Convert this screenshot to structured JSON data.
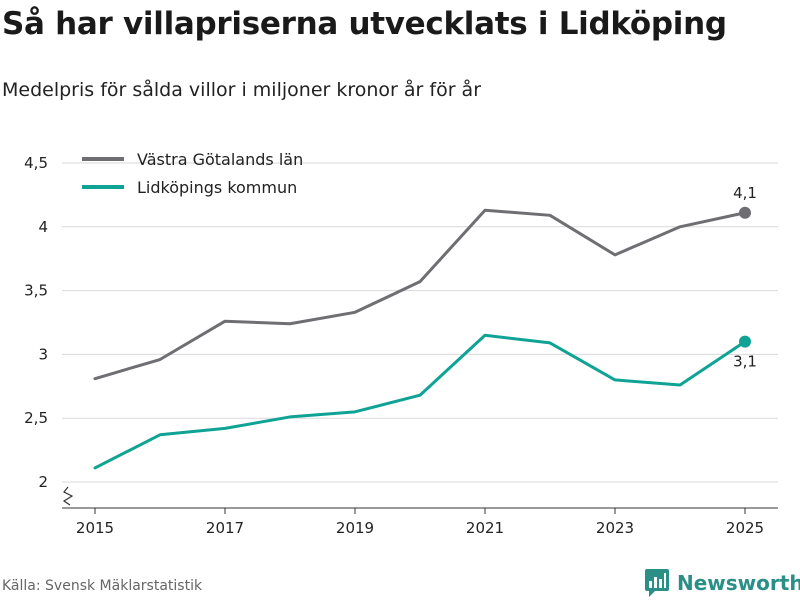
{
  "header": {
    "title": "Så har villapriserna utvecklats i Lidköping",
    "subtitle": "Medelpris för sålda villor i miljoner kronor år för år"
  },
  "footer": {
    "source": "Källa: Svensk Mäklarstatistik",
    "brand": "Newsworthy"
  },
  "colors": {
    "region": "#6f6e73",
    "municipality": "#0fa396",
    "grid": "#d9d9d9",
    "axis": "#333333",
    "brand": "#2a8f86"
  },
  "chart_data": {
    "type": "line",
    "x": [
      2015,
      2016,
      2017,
      2018,
      2019,
      2020,
      2021,
      2022,
      2023,
      2024,
      2025
    ],
    "x_ticks": [
      "2015",
      "2017",
      "2019",
      "2021",
      "2023",
      "2025"
    ],
    "y_ticks": [
      "2",
      "2,5",
      "3",
      "3,5",
      "4",
      "4,5"
    ],
    "ylim": [
      2,
      4.5
    ],
    "y_axis_broken": true,
    "grid": true,
    "legend_position": "top-left",
    "series": [
      {
        "name": "Västra Götalands län",
        "color": "#6f6e73",
        "values": [
          2.81,
          2.96,
          3.26,
          3.24,
          3.33,
          3.57,
          4.13,
          4.09,
          3.78,
          4.0,
          4.11
        ],
        "end_label": "4,1"
      },
      {
        "name": "Lidköpings kommun",
        "color": "#0fa396",
        "values": [
          2.11,
          2.37,
          2.42,
          2.51,
          2.55,
          2.68,
          3.15,
          3.09,
          2.8,
          2.76,
          3.1
        ],
        "end_label": "3,1"
      }
    ]
  }
}
